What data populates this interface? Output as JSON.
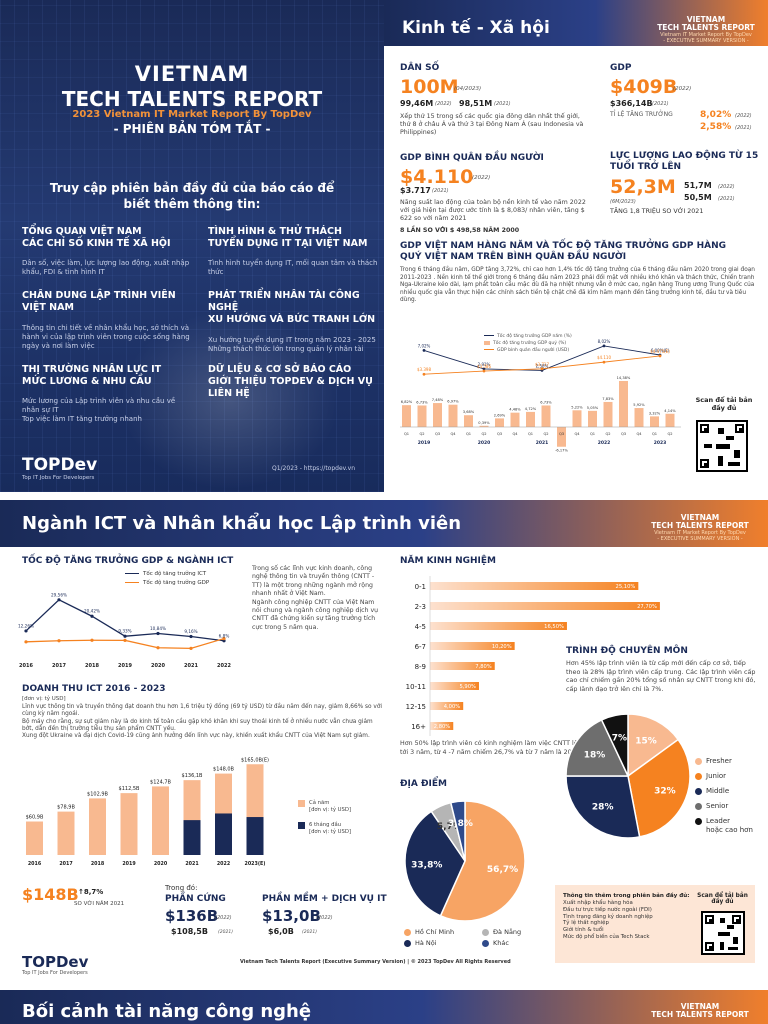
{
  "cover": {
    "title1": "VIETNAM",
    "title2": "TECH TALENTS REPORT",
    "subtitle": "2023 Vietnam IT Market Report By TopDev",
    "edition": "- PHIÊN BẢN TÓM TẮT -",
    "access_text": "Truy cập phiên bản đầy đủ của báo cáo để biết thêm thông tin:",
    "sections": [
      {
        "title": "TỔNG QUAN VIỆT NAM\nCÁC CHỈ SỐ KINH TẾ XÃ HỘI",
        "desc": "Dân số, việc làm, lực lượng lao động, xuất nhập khẩu, FDI & tình hình IT"
      },
      {
        "title": "TÌNH HÌNH & THỬ THÁCH\nTUYỂN DỤNG IT TẠI VIỆT NAM",
        "desc": "Tình hình tuyển dụng IT, mối quan tâm và thách thức"
      },
      {
        "title": "CHÂN DUNG LẬP TRÌNH VIÊN\nVIỆT NAM",
        "desc": "Thông tin chi tiết về nhân khẩu học, sở thích và hành vi của lập trình viên trong cuộc sống hàng ngày và nơi làm việc"
      },
      {
        "title": "PHÁT TRIỂN NHÂN TÀI CÔNG NGHỆ\nXU HƯỚNG VÀ BỨC TRANH LỚN",
        "desc": "Xu hướng tuyển dụng IT trong năm 2023 - 2025\nNhững thách thức lớn trong quản lý nhân tài"
      },
      {
        "title": "THỊ TRƯỜNG NHÂN LỰC IT\nMỨC LƯƠNG & NHU CẦU",
        "desc": "Mức lương của Lập trình viên và nhu cầu về nhân sự IT\nTop việc làm IT tăng trưởng nhanh"
      },
      {
        "title": "DỮ LIỆU & CƠ SỞ BÁO CÁO\nGIỚI THIỆU TOPDEV & DỊCH VỤ\nLIÊN HỆ",
        "desc": ""
      }
    ],
    "logo": "TOPDev",
    "logo_tag": "Top IT Jobs For Developers",
    "date_url": "Q1/2023 - https://topdev.vn"
  },
  "econ": {
    "title": "Kinh tế - Xã hội",
    "badge1": "VIETNAM",
    "badge2": "TECH TALENTS REPORT",
    "badge3": "Vietnam IT Market Report By TopDev",
    "badge4": "- EXECUTIVE SUMMARY VERSION -",
    "pop_label": "DÂN SỐ",
    "pop_value": "100M",
    "pop_year": "(04/2023)",
    "pop_2022": "99,46M",
    "pop_2022_y": "(2022)",
    "pop_2021": "98,51M",
    "pop_2021_y": "(2021)",
    "pop_desc": "Xếp thứ 15 trong số các quốc gia đông dân nhất thế giới, thứ 8 ở châu Á và thứ 3 tại Đông Nam Á (sau Indonesia và Philippines)",
    "gdp_label": "GDP",
    "gdp_value": "$409B",
    "gdp_year": "(2022)",
    "gdp_2021": "$366,14B",
    "gdp_2021_y": "(2021)",
    "gdp_growth_label": "TỈ LỆ TĂNG TRƯỞNG",
    "gdp_growth_2022": "8,02%",
    "gdp_growth_2022_y": "(2022)",
    "gdp_growth_2021": "2,58%",
    "gdp_growth_2021_y": "(2021)",
    "gdppc_label": "GDP BÌNH QUÂN ĐẦU NGƯỜI",
    "gdppc_value": "$4.110",
    "gdppc_year": "(2022)",
    "gdppc_2021": "$3.717",
    "gdppc_2021_y": "(2021)",
    "gdppc_desc": "Năng suất lao động của toàn bộ nền kinh tế vào năm 2022 với giá hiện tại được ước tính là $ 8,083/ nhân viên, tăng $ 622 so với năm 2021",
    "gdppc_note": "8 LẦN SO VỚI $ 498,58 NĂM 2000",
    "labor_label": "LỰC LƯỢNG LAO ĐỘNG TỪ 15 TUỔI TRỞ LÊN",
    "labor_value": "52,3M",
    "labor_year": "(6M/2023)",
    "labor_2022": "51,7M",
    "labor_2022_y": "(2022)",
    "labor_2021": "50,5M",
    "labor_2021_y": "(2021)",
    "labor_note": "TĂNG 1,8 TRIỆU SO VỚI 2021",
    "chart_title": "GDP VIỆT NAM HÀNG NĂM VÀ TỐC ĐỘ TĂNG TRƯỞNG GDP HÀNG QUÝ VIỆT NAM TRÊN BÌNH QUÂN ĐẦU NGƯỜI",
    "chart_desc": "Trong 6 tháng đầu năm, GDP tăng 3,72%, chỉ cao hơn 1,4% tốc độ tăng trưởng của 6 tháng đầu năm 2020 trong giai đoạn 2011-2023 . Nền kinh tế thế giới trong 6 tháng đầu năm 2023 phải đối mặt với nhiều khó khăn và thách thức, Chiến tranh Nga-Ukraine kéo dài, lạm phát toàn cầu mặc dù đã hạ nhiệt nhưng vẫn ở mức cao, ngân hàng Trung ương Trung Quốc của nhiều quốc gia vẫn thực hiện các chính sách tiền tệ chặt chẽ đã kìm hãm mạnh đến tăng trưởng kinh tế, đầu tư và tiêu dùng.",
    "chart_legend": [
      "Tốc độ tăng trưởng GDP năm (%)",
      "Tốc độ tăng trưởng GDP quý (%)",
      "GDP bình quân đầu người (USD)"
    ],
    "scan_text": "Scan để tải bản đầy đủ"
  },
  "ict": {
    "title": "Ngành ICT và Nhân khẩu học Lập trình viên",
    "growth_title": "TỐC ĐỘ TĂNG TRƯỞNG GDP & NGÀNH ICT",
    "growth_legend": [
      "Tốc độ tăng trưởng ICT",
      "Tốc độ tăng trưởng GDP"
    ],
    "growth_text": "Trong số các lĩnh vực kinh doanh, công nghệ thông tin và truyền thông (CNTT -TT) là một trong những ngành mở rộng nhanh nhất ở Việt Nam.\nNgành công nghiệp CNTT của Việt Nam nói chung và ngành công nghiệp dịch vụ CNTT đã chứng kiến sự tăng trưởng tích cực trong 5 năm qua.",
    "rev_title": "DOANH THU ICT 2016 - 2023",
    "rev_unit": "[đơn vị: tỷ USD]",
    "rev_desc": "Lĩnh vực thông tin và truyền thông đạt doanh thu hơn 1,6 triệu tỷ đồng (69 tỷ USD) từ đầu năm đến nay, giảm 8,66% so với cùng kỳ năm ngoái.\nBộ máy cho rằng, sự sụt giảm này là do kinh tế toàn cầu gặp khó khăn khi suy thoái kinh tế ở nhiều nước vẫn chưa giảm bớt, dẫn đến thị trường tiêu thụ sản phẩm CNTT yếu.\nXung đột Ukraine và đại dịch Covid-19 cũng ảnh hưởng đến lĩnh vực này, khiến xuất khẩu CNTT của Việt Nam sụt giảm.",
    "rev_legend": [
      "Cả năm\n[đơn vị: tỷ USD]",
      "6 tháng đầu\n[đơn vị: tỷ USD]"
    ],
    "total": "$148B",
    "total_growth": "8,7%",
    "total_note": "SO VỚI NĂM 2021",
    "in_which": "Trong đó:",
    "hw_label": "PHẦN CỨNG",
    "hw_2022": "$136B",
    "hw_2022_y": "(2022)",
    "hw_2021": "$108,5B",
    "hw_2021_y": "(2021)",
    "sw_label": "PHẦN MỀM + DỊCH VỤ IT",
    "sw_2022": "$13,0B",
    "sw_2022_y": "(2022)",
    "sw_2021": "$6,0B",
    "sw_2021_y": "(2021)",
    "exp_title": "NĂM KINH NGHIỆM",
    "exp_text": "Hơn 50% lập trình viên có kinh nghiệm làm việc CNTT lên tới 3 năm, từ 4 -7 năm chiếm 26,7% và từ 7 năm là 20,5%.",
    "level_title": "TRÌNH ĐỘ CHUYÊN MÔN",
    "level_text": "Hơn 45% lập trình viên là từ cấp mới đến cấp cơ sở, tiếp theo là 28% lập trình viên cấp trung. Các lập trình viên cấp cao chỉ chiếm gần 20% tổng số nhân sự CNTT trong khi đó, cấp lãnh đạo trở lên chỉ là 7%.",
    "loc_title": "ĐỊA ĐIỂM",
    "info_title": "Thông tin thêm trong phiên bản đầy đủ:",
    "info_items": [
      "Xuất nhập khẩu hàng hóa",
      "Đầu tư trực tiếp nước ngoài (FDI)",
      "Tình trạng đăng ký doanh nghiệp",
      "Tỷ lệ thất nghiệp",
      "Giới tính & tuổi",
      "Mức độ phổ biến của Tech Stack"
    ],
    "scan_text": "Scan để tải bản đầy đủ",
    "footer": "Vietnam Tech Talents Report  (Executive Summary Version)  | © 2023 TopDev All Rights Reserved"
  },
  "next": {
    "title": "Bối cảnh tài năng công nghệ"
  },
  "colors": {
    "navy": "#1a2a57",
    "orange": "#f58220",
    "light_orange": "#f8b990"
  },
  "chart_data": [
    {
      "type": "line",
      "title": "GDP VIỆT NAM HÀNG NĂM VÀ TỐC ĐỘ TĂNG TRƯỞNG GDP HÀNG QUÝ VIỆT NAM TRÊN BÌNH QUÂN ĐẦU NGƯỜI",
      "x": [
        "2019",
        "2020",
        "2021",
        "2022",
        "2023"
      ],
      "series": [
        {
          "name": "Tốc độ tăng trưởng GDP năm (%)",
          "values": [
            7.02,
            2.91,
            2.58,
            8.02,
            6.0
          ]
        },
        {
          "name": "GDP bình quân đầu người (USD)",
          "values": [
            3.398,
            3.586,
            3.717,
            4.11,
            4.475
          ]
        }
      ],
      "value_labels_top": [
        "7,02%",
        "2,91%",
        "2,58%",
        "8,02%",
        "6,00%(E)"
      ],
      "value_labels_mid": [
        "$3.398",
        "$3.586",
        "$3.717",
        "$4.110",
        "$4.475(E)"
      ]
    },
    {
      "type": "bar",
      "title": "",
      "categories": [
        "Q1",
        "Q2",
        "Q3",
        "Q4",
        "Q1",
        "Q2",
        "Q3",
        "Q4",
        "Q1",
        "Q2",
        "Q3",
        "Q4",
        "Q1",
        "Q2",
        "Q3",
        "Q4",
        "Q1",
        "Q2"
      ],
      "groups": [
        "2019",
        "2020",
        "2021",
        "2022",
        "2023"
      ],
      "values": [
        6.82,
        6.73,
        7.48,
        6.97,
        3.68,
        0.39,
        2.69,
        4.48,
        4.72,
        6.73,
        -6.17,
        5.22,
        5.05,
        7.83,
        14.38,
        5.92,
        3.32,
        4.14
      ],
      "labels": [
        "6,82%",
        "6,73%",
        "7,48%",
        "6,97%",
        "3,68%",
        "0,39%",
        "2,69%",
        "4,48%",
        "4,72%",
        "6,73%",
        "-6,17%",
        "5,22%",
        "5,05%",
        "7,83%",
        "14,38%",
        "5,92%",
        "3,32%",
        "4,14%"
      ]
    },
    {
      "type": "line",
      "title": "TỐC ĐỘ TĂNG TRƯỞNG GDP & NGÀNH ICT",
      "x": [
        "2016",
        "2017",
        "2018",
        "2019",
        "2020",
        "2021",
        "2022"
      ],
      "series": [
        {
          "name": "Tốc độ tăng trưởng ICT",
          "values": [
            12.26,
            29.56,
            20.42,
            9.33,
            10.84,
            9.16,
            6.8
          ]
        },
        {
          "name": "Tốc độ tăng trưởng GDP",
          "values": [
            6.21,
            6.81,
            7.08,
            7.02,
            2.91,
            2.58,
            8.02
          ]
        }
      ],
      "labels": [
        "12,26%",
        "29,56%",
        "20,42%",
        "9,33%",
        "10,84%",
        "9,16%",
        "6,8%"
      ]
    },
    {
      "type": "bar",
      "title": "DOANH THU ICT 2016 - 2023",
      "categories": [
        "2016",
        "2017",
        "2018",
        "2019",
        "2020",
        "2021",
        "2022",
        "2023(E)"
      ],
      "series": [
        {
          "name": "Cả năm",
          "values": [
            60.9,
            78.9,
            102.9,
            112.5,
            124.7,
            136.1,
            148.0,
            165.0
          ]
        },
        {
          "name": "6 tháng đầu",
          "values": [
            null,
            null,
            null,
            null,
            null,
            63.4,
            75.5,
            69.0
          ]
        }
      ],
      "labels": [
        "$60,9B",
        "$78,9B",
        "$102,9B",
        "$112,5B",
        "$124,7B",
        "$136,1B",
        "$148,0B",
        "$165,0B(E)"
      ]
    },
    {
      "type": "bar",
      "title": "NĂM KINH NGHIỆM",
      "categories": [
        "0-1",
        "2-3",
        "4-5",
        "6-7",
        "8-9",
        "10-11",
        "12-15",
        "16+"
      ],
      "values": [
        25.1,
        27.7,
        16.5,
        10.2,
        7.8,
        5.9,
        4.0,
        2.8
      ],
      "labels": [
        "25,10%",
        "27,70%",
        "16,50%",
        "10,20%",
        "7,80%",
        "5,90%",
        "4,00%",
        "2,80%"
      ]
    },
    {
      "type": "pie",
      "title": "TRÌNH ĐỘ CHUYÊN MÔN",
      "categories": [
        "Fresher",
        "Junior",
        "Middle",
        "Senior",
        "Leader\nhoặc cao hơn"
      ],
      "values": [
        15,
        32,
        28,
        18,
        7
      ],
      "labels": [
        "15%",
        "32%",
        "28%",
        "18%",
        "7%"
      ]
    },
    {
      "type": "pie",
      "title": "ĐỊA ĐIỂM",
      "categories": [
        "Hồ Chí Minh",
        "Hà Nội",
        "Đà Nẵng",
        "Khác"
      ],
      "values": [
        56.7,
        33.8,
        5.7,
        3.8
      ],
      "labels": [
        "56,7%",
        "33,8%",
        "5,7%",
        "3,8%"
      ]
    }
  ]
}
